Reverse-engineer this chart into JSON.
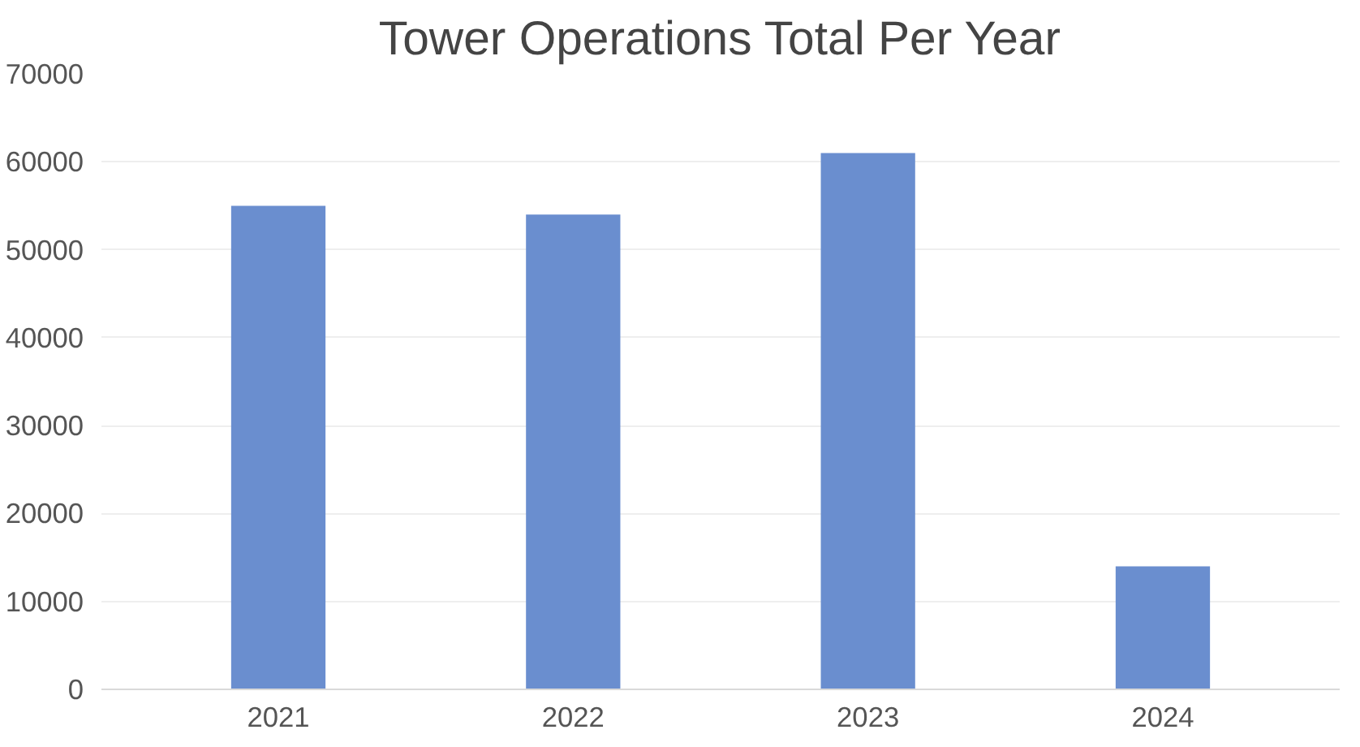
{
  "chart_data": {
    "type": "bar",
    "title": "Tower Operations Total Per Year",
    "categories": [
      "2021",
      "2022",
      "2023",
      "2024"
    ],
    "values": [
      55000,
      54000,
      61000,
      14000
    ],
    "color": "#6a8ecf",
    "ylim": [
      0,
      70000
    ],
    "yticks": [
      0,
      10000,
      20000,
      30000,
      40000,
      50000,
      60000,
      70000
    ],
    "grid": "y"
  }
}
